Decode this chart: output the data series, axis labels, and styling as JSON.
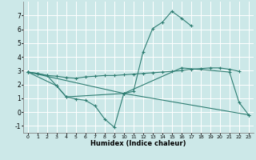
{
  "xlabel": "Humidex (Indice chaleur)",
  "bg_color": "#cce8e8",
  "grid_color": "#ffffff",
  "line_color": "#2e7d72",
  "xlim": [
    -0.5,
    23.5
  ],
  "ylim": [
    -1.5,
    8.0
  ],
  "xticks": [
    0,
    1,
    2,
    3,
    4,
    5,
    6,
    7,
    8,
    9,
    10,
    11,
    12,
    13,
    14,
    15,
    16,
    17,
    18,
    19,
    20,
    21,
    22,
    23
  ],
  "yticks": [
    -1,
    0,
    1,
    2,
    3,
    4,
    5,
    6,
    7
  ],
  "series": {
    "line1_flat": {
      "x": [
        0,
        1,
        2,
        3,
        4,
        5,
        6,
        7,
        8,
        9,
        10,
        11,
        12,
        13,
        14,
        15,
        16,
        17,
        18,
        19,
        20,
        21,
        22
      ],
      "y": [
        2.9,
        2.8,
        2.65,
        2.6,
        2.5,
        2.45,
        2.55,
        2.6,
        2.65,
        2.65,
        2.7,
        2.75,
        2.8,
        2.85,
        2.9,
        2.95,
        3.0,
        3.1,
        3.15,
        3.2,
        3.2,
        3.1,
        2.95
      ]
    },
    "line2_curve": {
      "x": [
        0,
        1,
        2,
        3,
        4,
        5,
        6,
        7,
        8,
        9,
        10,
        11,
        12,
        13,
        14,
        15,
        16,
        17
      ],
      "y": [
        2.9,
        2.8,
        2.65,
        1.9,
        1.1,
        0.95,
        0.85,
        0.45,
        -0.5,
        -1.1,
        1.35,
        1.5,
        4.35,
        6.05,
        6.5,
        7.3,
        6.8,
        6.25
      ]
    },
    "line3_diag": {
      "x": [
        0,
        3,
        4,
        10,
        16,
        21,
        22,
        23
      ],
      "y": [
        2.9,
        1.9,
        1.1,
        1.35,
        3.2,
        2.9,
        0.7,
        -0.2
      ]
    },
    "line4_straight": {
      "x": [
        0,
        10,
        23
      ],
      "y": [
        2.9,
        1.35,
        -0.2
      ]
    }
  }
}
